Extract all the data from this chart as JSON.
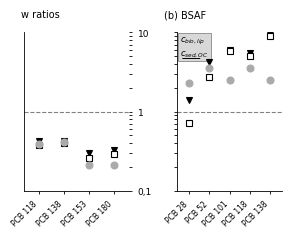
{
  "panel_a": {
    "categories": [
      "PCB 118",
      "PCB 138",
      "PCB 153",
      "PCB 180"
    ],
    "dashed_line": 1.0,
    "ylim": [
      0.1,
      10
    ],
    "series": {
      "filled_triangle": [
        0.42,
        0.43,
        0.3,
        0.33
      ],
      "open_square": [
        0.38,
        0.4,
        0.26,
        0.29
      ],
      "open_circle": [
        0.39,
        0.41,
        0.21,
        0.21
      ]
    }
  },
  "panel_b": {
    "categories": [
      "PCB 28",
      "PCB 52",
      "PCB 101",
      "PCB 118",
      "PCB 138"
    ],
    "dashed_line": 1.0,
    "ylim": [
      0.1,
      10
    ],
    "series": {
      "filled_triangle": [
        1.4,
        4.2,
        6.0,
        5.5,
        9.5
      ],
      "open_square": [
        0.72,
        2.7,
        5.8,
        5.0,
        9.0
      ],
      "open_circle": [
        2.3,
        3.5,
        2.5,
        3.5,
        2.5
      ]
    }
  },
  "marker_size": 5,
  "lw": 0.8,
  "gray": "#aaaaaa",
  "light_gray": "#d8d8d8",
  "white": "#ffffff"
}
